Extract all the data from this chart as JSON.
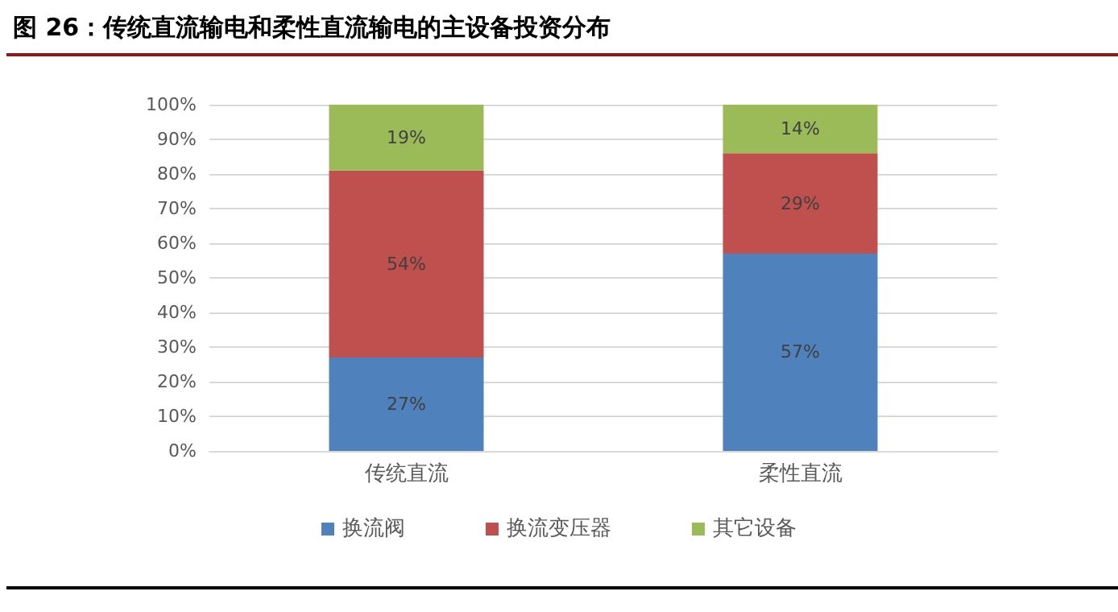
{
  "chart_data": {
    "type": "bar",
    "title": "图 26：传统直流输电和柔性直流输电的主设备投资分布",
    "categories": [
      "传统直流",
      "柔性直流"
    ],
    "stacked": true,
    "series": [
      {
        "name": "换流阀",
        "color": "#4f81bd",
        "values": [
          27,
          57
        ],
        "value_labels": [
          "27%",
          "57%"
        ]
      },
      {
        "name": "换流变压器",
        "color": "#c0504d",
        "values": [
          54,
          29
        ],
        "value_labels": [
          "54%",
          "29%"
        ]
      },
      {
        "name": "其它设备",
        "color": "#9bbb59",
        "values": [
          19,
          14
        ],
        "value_labels": [
          "19%",
          "14%"
        ]
      }
    ],
    "ylim": [
      0,
      100
    ],
    "yticks": [
      {
        "value": 0,
        "label": "0%"
      },
      {
        "value": 10,
        "label": "10%"
      },
      {
        "value": 20,
        "label": "20%"
      },
      {
        "value": 30,
        "label": "30%"
      },
      {
        "value": 40,
        "label": "40%"
      },
      {
        "value": 50,
        "label": "50%"
      },
      {
        "value": 60,
        "label": "60%"
      },
      {
        "value": 70,
        "label": "70%"
      },
      {
        "value": 80,
        "label": "80%"
      },
      {
        "value": 90,
        "label": "90%"
      },
      {
        "value": 100,
        "label": "100%"
      }
    ],
    "grid": "y",
    "legend": "bottom"
  }
}
